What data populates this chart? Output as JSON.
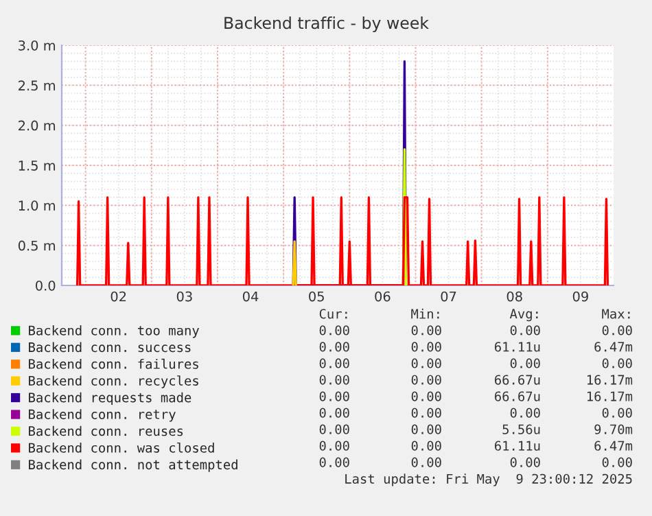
{
  "chart_data": {
    "type": "line",
    "title": "Backend traffic - by week",
    "xlim": [
      1.64,
      10.0
    ],
    "xticks": [
      {
        "value": 2,
        "label": null
      },
      {
        "value": 2.5,
        "label": "02"
      },
      {
        "value": 3,
        "label": null
      },
      {
        "value": 3.5,
        "label": "03"
      },
      {
        "value": 4,
        "label": null
      },
      {
        "value": 4.5,
        "label": "04"
      },
      {
        "value": 5,
        "label": null
      },
      {
        "value": 5.5,
        "label": "05"
      },
      {
        "value": 6,
        "label": null
      },
      {
        "value": 6.5,
        "label": "06"
      },
      {
        "value": 7,
        "label": null
      },
      {
        "value": 7.5,
        "label": "07"
      },
      {
        "value": 8,
        "label": null
      },
      {
        "value": 8.5,
        "label": "08"
      },
      {
        "value": 9,
        "label": null
      },
      {
        "value": 9.5,
        "label": "09"
      }
    ],
    "ylim": [
      0,
      3.0
    ],
    "yticks": [
      {
        "value": 0,
        "label": "0.0"
      },
      {
        "value": 0.5,
        "label": "0.5 m"
      },
      {
        "value": 1.0,
        "label": "1.0 m"
      },
      {
        "value": 1.5,
        "label": "1.5 m"
      },
      {
        "value": 2.0,
        "label": "2.0 m"
      },
      {
        "value": 2.5,
        "label": "2.5 m"
      },
      {
        "value": 3.0,
        "label": "3.0 m"
      }
    ],
    "grid": true,
    "legend": "bottom",
    "line_style": "solid",
    "marker": "none",
    "series": [
      {
        "name": "Backend conn. too many",
        "color": "#00cc00"
      },
      {
        "name": "Backend conn. success",
        "color": "#0066b3"
      },
      {
        "name": "Backend conn. failures",
        "color": "#ff8000"
      },
      {
        "name": "Backend conn. recycles",
        "color": "#ffcc00",
        "x": [
          5.146,
          5.167,
          5.188
        ],
        "values": [
          0,
          0.55,
          0
        ]
      },
      {
        "name": "Backend requests made",
        "color": "#330099",
        "x": [
          5.146,
          5.167,
          5.188,
          6.812,
          6.833,
          6.854
        ],
        "values": [
          0,
          1.1,
          0,
          0,
          2.8,
          0
        ]
      },
      {
        "name": "Backend conn. retry",
        "color": "#990099"
      },
      {
        "name": "Backend conn. reuses",
        "color": "#ccff00",
        "x": [
          6.812,
          6.833,
          6.854
        ],
        "values": [
          0,
          1.7,
          0
        ]
      },
      {
        "name": "Backend conn. was closed",
        "color": "#ff0000",
        "x": [
          1.875,
          1.896,
          1.917,
          2.312,
          2.333,
          2.354,
          2.625,
          2.646,
          2.667,
          2.869,
          2.89,
          2.911,
          3.229,
          3.25,
          3.271,
          3.687,
          3.708,
          3.729,
          3.854,
          3.875,
          3.896,
          4.437,
          4.458,
          4.479,
          5.425,
          5.446,
          5.467,
          5.854,
          5.875,
          5.896,
          5.979,
          6.0,
          6.021,
          6.271,
          6.292,
          6.313,
          6.812,
          6.833,
          6.875,
          6.896,
          7.083,
          7.104,
          7.125,
          7.187,
          7.208,
          7.229,
          7.771,
          7.792,
          7.813,
          7.883,
          7.904,
          7.925,
          8.55,
          8.571,
          8.592,
          8.729,
          8.75,
          8.771,
          8.854,
          8.875,
          8.896,
          9.229,
          9.25,
          9.271,
          9.869,
          9.89,
          9.911
        ],
        "values": [
          0,
          1.05,
          0,
          0,
          1.1,
          0,
          0,
          0.53,
          0,
          0,
          1.1,
          0,
          0,
          1.1,
          0,
          0,
          1.1,
          0,
          0,
          1.1,
          0,
          0,
          1.1,
          0,
          0,
          1.1,
          0,
          0,
          1.1,
          0,
          0,
          0.55,
          0,
          0,
          1.1,
          0,
          0,
          1.1,
          1.1,
          0,
          0,
          0.55,
          0,
          0,
          1.08,
          0,
          0,
          0.55,
          0,
          0,
          0.56,
          0,
          0,
          1.08,
          0,
          0,
          0.55,
          0,
          0,
          1.1,
          0,
          0,
          1.1,
          0,
          0,
          1.08,
          0
        ]
      },
      {
        "name": "Backend conn. not attempted",
        "color": "#808080"
      }
    ],
    "annotations": [
      "Cur:",
      "Min:",
      "Avg:",
      "Max:",
      "0.00",
      "0.00",
      "0.00",
      "0.00",
      "0.00",
      "0.00",
      "61.11u",
      "6.47m",
      "0.00",
      "0.00",
      "0.00",
      "0.00",
      "0.00",
      "0.00",
      "66.67u",
      "16.17m",
      "0.00",
      "0.00",
      "66.67u",
      "16.17m",
      "0.00",
      "0.00",
      "0.00",
      "0.00",
      "0.00",
      "0.00",
      "5.56u",
      "9.70m",
      "0.00",
      "0.00",
      "61.11u",
      "6.47m",
      "0.00",
      "0.00",
      "0.00",
      "0.00",
      "Last update: Fri May  9 23:00:12 2025"
    ]
  }
}
